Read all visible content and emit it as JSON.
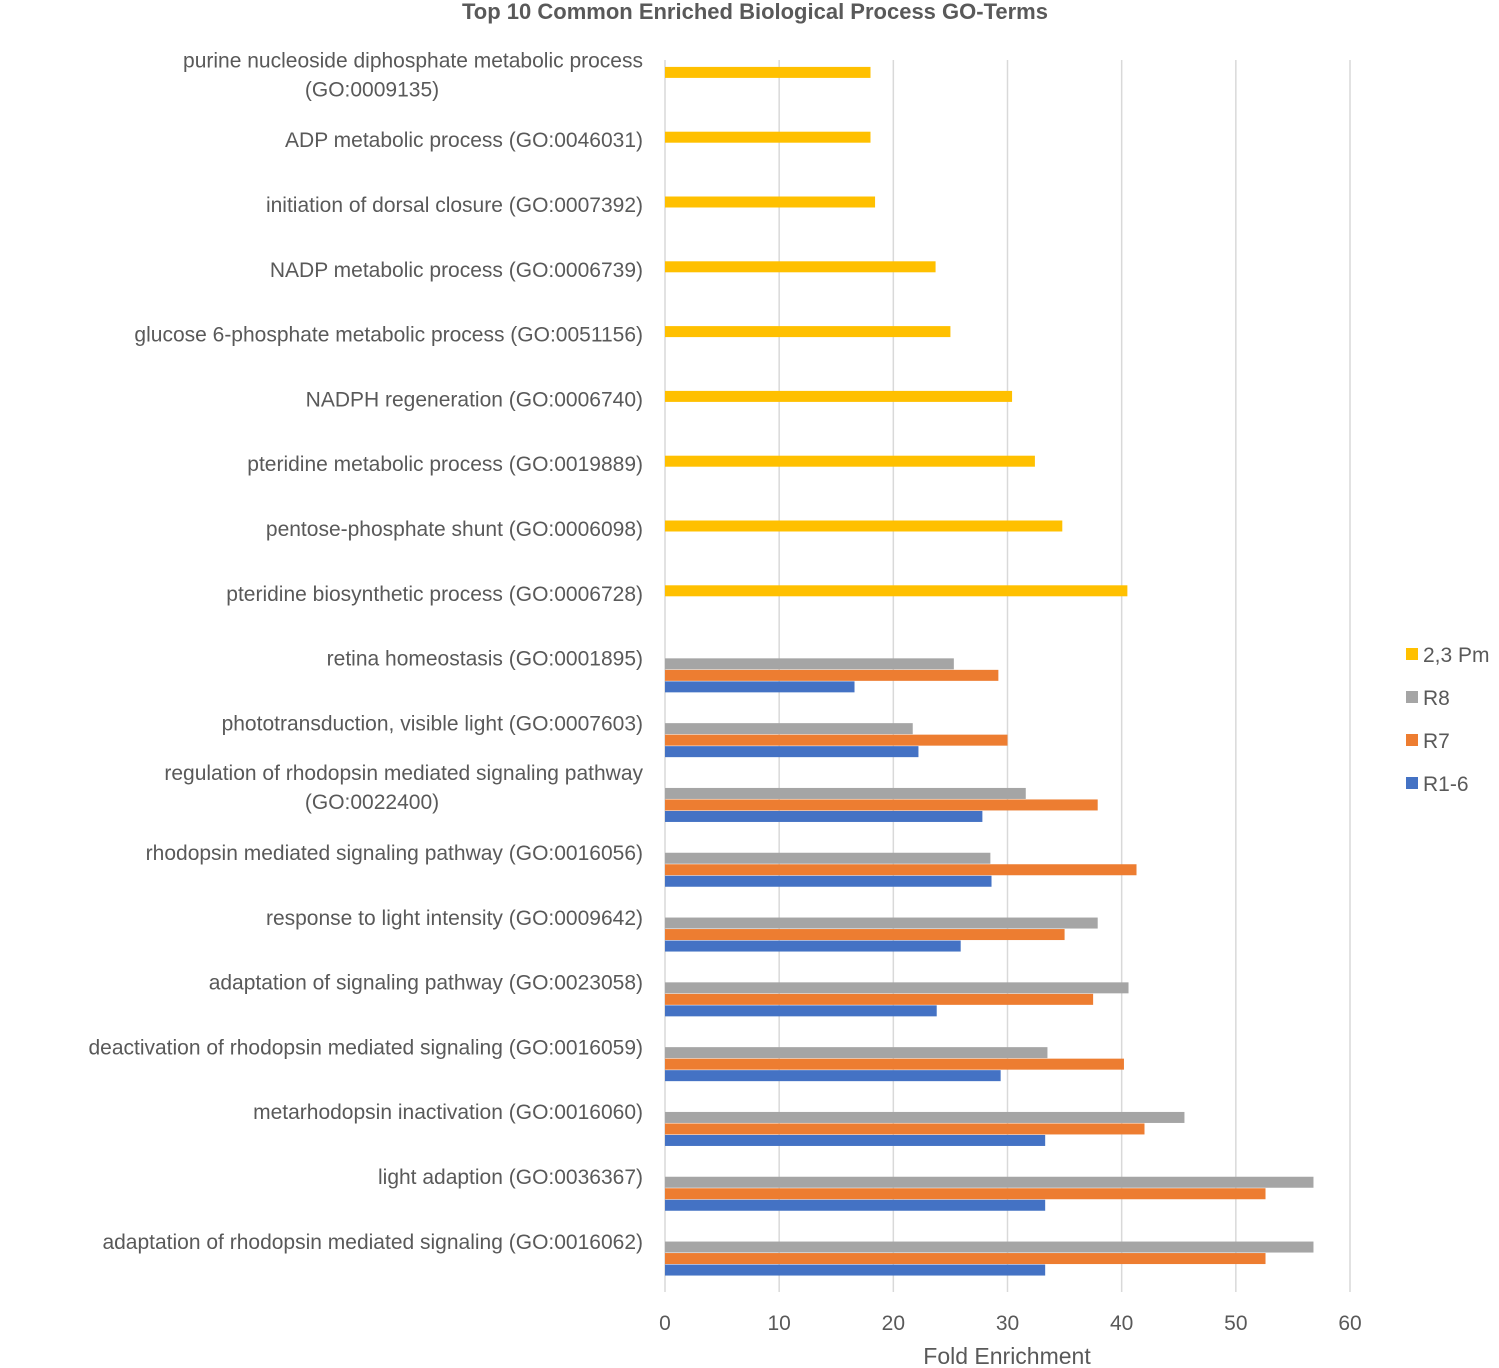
{
  "chart_data": {
    "type": "bar",
    "orientation": "horizontal",
    "title": "Top 10 Common Enriched Biological Process GO-Terms",
    "xlabel": "Fold Enrichment",
    "ylabel": "",
    "xlim": [
      0,
      60
    ],
    "xticks": [
      0,
      10,
      20,
      30,
      40,
      50,
      60
    ],
    "grid": true,
    "legend_position": "right",
    "categories": [
      [
        "purine nucleoside diphosphate metabolic process",
        "(GO:0009135)"
      ],
      [
        "ADP metabolic process (GO:0046031)"
      ],
      [
        "initiation of dorsal closure (GO:0007392)"
      ],
      [
        "NADP metabolic process (GO:0006739)"
      ],
      [
        "glucose 6-phosphate metabolic process (GO:0051156)"
      ],
      [
        "NADPH regeneration (GO:0006740)"
      ],
      [
        "pteridine metabolic process (GO:0019889)"
      ],
      [
        "pentose-phosphate shunt (GO:0006098)"
      ],
      [
        "pteridine biosynthetic process (GO:0006728)"
      ],
      [
        "retina homeostasis (GO:0001895)"
      ],
      [
        "phototransduction, visible light (GO:0007603)"
      ],
      [
        "regulation of rhodopsin mediated signaling pathway",
        "(GO:0022400)"
      ],
      [
        "rhodopsin mediated signaling pathway (GO:0016056)"
      ],
      [
        "response to light intensity (GO:0009642)"
      ],
      [
        "adaptation of signaling pathway (GO:0023058)"
      ],
      [
        "deactivation of rhodopsin mediated signaling (GO:0016059)"
      ],
      [
        "metarhodopsin inactivation (GO:0016060)"
      ],
      [
        "light adaption (GO:0036367)"
      ],
      [
        "adaptation of rhodopsin mediated signaling (GO:0016062)"
      ]
    ],
    "series": [
      {
        "name": "2,3 Pm",
        "color": "#FFC000",
        "values": [
          18.0,
          18.0,
          18.4,
          23.7,
          25.0,
          30.4,
          32.4,
          34.8,
          40.5,
          null,
          null,
          null,
          null,
          null,
          null,
          null,
          null,
          null,
          null
        ]
      },
      {
        "name": "R8",
        "color": "#A5A5A5",
        "values": [
          null,
          null,
          null,
          null,
          null,
          null,
          null,
          null,
          null,
          25.3,
          21.7,
          31.6,
          28.5,
          37.9,
          40.6,
          33.5,
          45.5,
          56.8,
          56.8
        ]
      },
      {
        "name": "R7",
        "color": "#ED7D31",
        "values": [
          null,
          null,
          null,
          null,
          null,
          null,
          null,
          null,
          null,
          29.2,
          30.0,
          37.9,
          41.3,
          35.0,
          37.5,
          40.2,
          42.0,
          52.6,
          52.6
        ]
      },
      {
        "name": "R1-6",
        "color": "#4472C4",
        "values": [
          null,
          null,
          null,
          null,
          null,
          null,
          null,
          null,
          null,
          16.6,
          22.2,
          27.8,
          28.6,
          25.9,
          23.8,
          29.4,
          33.3,
          33.3,
          33.3
        ]
      }
    ]
  }
}
